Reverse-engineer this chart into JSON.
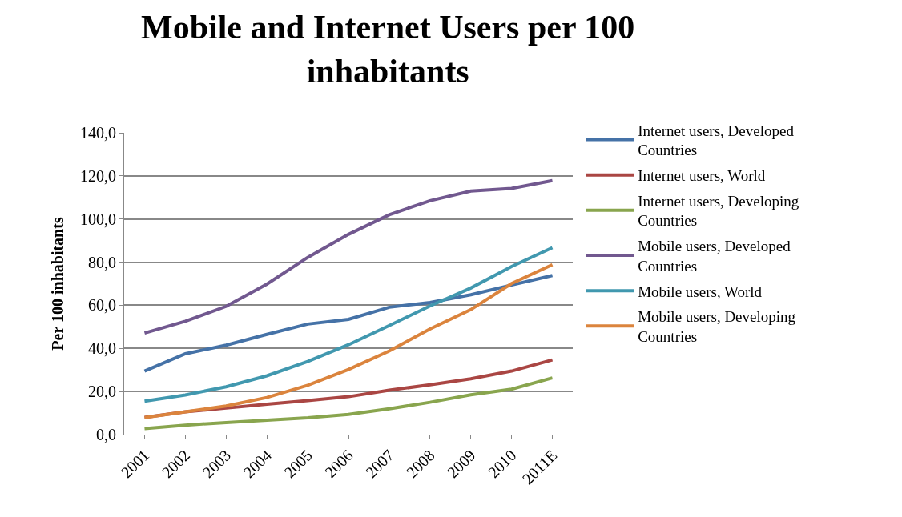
{
  "chart_data": {
    "type": "line",
    "title": "Mobile and Internet Users per 100 inhabitants",
    "ylabel": "Per 100 inhabitants",
    "categories": [
      "2001",
      "2002",
      "2003",
      "2004",
      "2005",
      "2006",
      "2007",
      "2008",
      "2009",
      "2010",
      "2011E"
    ],
    "series": [
      {
        "name": "Internet users, Developed Countries",
        "color": "#4572a7",
        "values": [
          29.5,
          37.5,
          41.5,
          46.5,
          51.3,
          53.5,
          59.1,
          61.3,
          64.9,
          69.4,
          73.8
        ]
      },
      {
        "name": "Internet users, World",
        "color": "#aa4643",
        "values": [
          8.0,
          10.6,
          12.3,
          14.1,
          15.8,
          17.6,
          20.6,
          23.1,
          25.9,
          29.5,
          34.7
        ]
      },
      {
        "name": "Internet users, Developing Countries",
        "color": "#89a54e",
        "values": [
          2.8,
          4.4,
          5.6,
          6.7,
          7.8,
          9.4,
          12.0,
          15.0,
          18.5,
          21.1,
          26.3
        ]
      },
      {
        "name": "Mobile users, Developed Countries",
        "color": "#71588f",
        "values": [
          47.1,
          52.6,
          59.5,
          69.8,
          82.2,
          92.9,
          102.0,
          108.5,
          113.0,
          114.2,
          117.8
        ]
      },
      {
        "name": "Mobile users, World",
        "color": "#4198af",
        "values": [
          15.5,
          18.4,
          22.2,
          27.3,
          33.9,
          41.7,
          50.6,
          59.7,
          68.0,
          78.0,
          86.7
        ]
      },
      {
        "name": "Mobile users, Developing Countries",
        "color": "#db843d",
        "values": [
          7.9,
          10.6,
          13.3,
          17.2,
          22.9,
          30.2,
          38.8,
          49.0,
          58.0,
          70.1,
          78.8
        ]
      }
    ],
    "ylim": [
      0,
      140
    ],
    "yticks": [
      {
        "value": 0,
        "label": "0,0"
      },
      {
        "value": 20,
        "label": "20,0"
      },
      {
        "value": 40,
        "label": "40,0"
      },
      {
        "value": 60,
        "label": "60,0"
      },
      {
        "value": 80,
        "label": "80,0"
      },
      {
        "value": 100,
        "label": "100,0"
      },
      {
        "value": 120,
        "label": "120,0"
      },
      {
        "value": 140,
        "label": "140,0"
      }
    ],
    "grid": "y",
    "legend": "right",
    "marker": "none",
    "line_style": "solid"
  }
}
